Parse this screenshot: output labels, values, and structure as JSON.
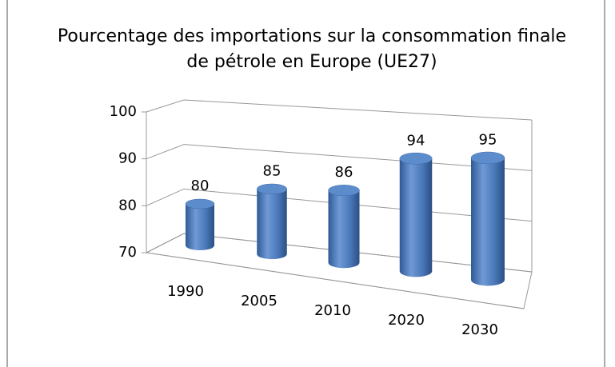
{
  "chart_data": {
    "type": "bar3d",
    "title": "Pourcentage des importations sur la consommation finale de pétrole en Europe (UE27)",
    "categories": [
      "1990",
      "2005",
      "2010",
      "2020",
      "2030"
    ],
    "values": [
      80,
      85,
      86,
      94,
      95
    ],
    "color": "#4f81bd",
    "ylim": [
      70,
      100
    ],
    "yticks": [
      70,
      80,
      90,
      100
    ],
    "grid": true
  }
}
